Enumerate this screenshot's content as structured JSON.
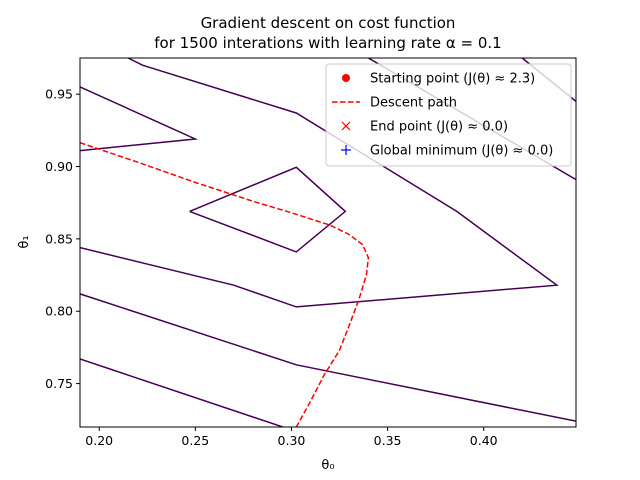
{
  "chart_data": {
    "type": "line",
    "title_lines": [
      "Gradient descent on cost function",
      "for 1500 interations with learning rate α = 0.1"
    ],
    "xlabel": "θ₀",
    "ylabel": "θ₁",
    "xlim": [
      0.19,
      0.448
    ],
    "ylim": [
      0.72,
      0.975
    ],
    "xticks": [
      0.2,
      0.25,
      0.3,
      0.35,
      0.4
    ],
    "xtick_labels": [
      "0.20",
      "0.25",
      "0.30",
      "0.35",
      "0.40"
    ],
    "yticks": [
      0.75,
      0.8,
      0.85,
      0.9,
      0.95
    ],
    "ytick_labels": [
      "0.75",
      "0.80",
      "0.85",
      "0.90",
      "0.95"
    ],
    "grid": false,
    "legend_placement": "top-right",
    "contour_color": "#440154",
    "contours": [
      [
        [
          0.247,
          0.869
        ],
        [
          0.3025,
          0.8995
        ],
        [
          0.328,
          0.869
        ],
        [
          0.3025,
          0.841
        ],
        [
          0.247,
          0.869
        ]
      ],
      [
        [
          0.19,
          0.844
        ],
        [
          0.27,
          0.818
        ],
        [
          0.3025,
          0.803
        ],
        [
          0.438,
          0.818
        ],
        [
          0.386,
          0.869
        ],
        [
          0.3025,
          0.937
        ],
        [
          0.2225,
          0.97
        ],
        [
          0.215,
          0.975
        ]
      ],
      [
        [
          0.19,
          0.911
        ],
        [
          0.25,
          0.919
        ],
        [
          0.19,
          0.955
        ]
      ],
      [
        [
          0.19,
          0.812
        ],
        [
          0.3025,
          0.763
        ],
        [
          0.448,
          0.724
        ]
      ],
      [
        [
          0.19,
          0.767
        ],
        [
          0.3,
          0.718
        ]
      ],
      [
        [
          0.34,
          0.975
        ],
        [
          0.448,
          0.891
        ]
      ],
      [
        [
          0.42,
          0.975
        ],
        [
          0.448,
          0.945
        ]
      ]
    ],
    "series": [
      {
        "name": "Descent path",
        "color": "#ff0000",
        "style": "dashed",
        "x": [
          0.19,
          0.22,
          0.25,
          0.28,
          0.3,
          0.32,
          0.33,
          0.337,
          0.34,
          0.339,
          0.335,
          0.33,
          0.325,
          0.317,
          0.31,
          0.3025
        ],
        "y": [
          0.9165,
          0.903,
          0.889,
          0.876,
          0.868,
          0.8595,
          0.853,
          0.846,
          0.837,
          0.825,
          0.808,
          0.79,
          0.773,
          0.756,
          0.738,
          0.72
        ]
      }
    ],
    "legend": [
      {
        "label": "Starting point (J(θ) ≈ 2.3)",
        "marker": "circle",
        "color": "#ff0000"
      },
      {
        "label": "Descent path",
        "marker": "dashed-line",
        "color": "#ff0000"
      },
      {
        "label": "End point (J(θ) ≈ 0.0)",
        "marker": "x",
        "color": "#ff0000"
      },
      {
        "label": "Global minimum (J(θ) ≈ 0.0)",
        "marker": "plus",
        "color": "#0000ff"
      }
    ]
  }
}
